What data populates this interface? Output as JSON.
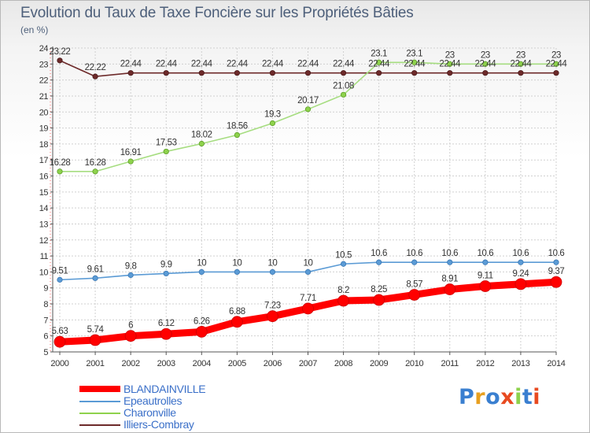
{
  "title": "Evolution du Taux de Taxe Foncière sur les Propriétés Bâties",
  "unit": "(en %)",
  "logo": "Proxiti",
  "colors": {
    "BLANDAINVILLE": "#ff0000",
    "Epeautrolles": "#5b9bd5",
    "Charonville": "#8ed24c",
    "Illiers-Combray": "#6d2a2a",
    "title": "#4d5f7a"
  },
  "chart_data": {
    "type": "line",
    "title": "Evolution du Taux de Taxe Foncière sur les Propriétés Bâties",
    "ylabel": "(en %)",
    "xlabel": "",
    "x": [
      "2000",
      "2001",
      "2002",
      "2003",
      "2004",
      "2005",
      "2006",
      "2007",
      "2008",
      "2009",
      "2010",
      "2011",
      "2012",
      "2013",
      "2014"
    ],
    "ylim": [
      5,
      24
    ],
    "yticks": [
      5,
      6,
      7,
      8,
      9,
      10,
      11,
      12,
      13,
      14,
      15,
      16,
      17,
      18,
      19,
      20,
      21,
      22,
      23,
      24
    ],
    "legend_position": "bottom-left",
    "series": [
      {
        "name": "BLANDAINVILLE",
        "values": [
          5.63,
          5.74,
          6,
          6.12,
          6.26,
          6.88,
          7.23,
          7.71,
          8.2,
          8.25,
          8.57,
          8.91,
          9.11,
          9.24,
          9.37
        ],
        "labels": [
          "5.63",
          "5.74",
          "6",
          "6.12",
          "6.26",
          "6.88",
          "7.23",
          "7.71",
          "8.2",
          "8.25",
          "8.57",
          "8.91",
          "9.11",
          "9.24",
          "9.37"
        ]
      },
      {
        "name": "Epeautrolles",
        "values": [
          9.51,
          9.61,
          9.8,
          9.9,
          10,
          10,
          10,
          10,
          10.5,
          10.6,
          10.6,
          10.6,
          10.6,
          10.6,
          10.6
        ],
        "labels": [
          "9.51",
          "9.61",
          "9.8",
          "9.9",
          "10",
          "10",
          "10",
          "10",
          "10.5",
          "10.6",
          "10.6",
          "10.6",
          "10.6",
          "10.6",
          "10.6"
        ]
      },
      {
        "name": "Charonville",
        "values": [
          16.28,
          16.28,
          16.91,
          17.53,
          18.02,
          18.56,
          19.3,
          20.17,
          21.08,
          23.1,
          23.1,
          23,
          23,
          23,
          23
        ],
        "labels": [
          "16.28",
          "16.28",
          "16.91",
          "17.53",
          "18.02",
          "18.56",
          "19.3",
          "20.17",
          "21.08",
          "23.1",
          "23.1",
          "23",
          "23",
          "23",
          "23"
        ]
      },
      {
        "name": "Illiers-Combray",
        "values": [
          23.22,
          22.22,
          22.44,
          22.44,
          22.44,
          22.44,
          22.44,
          22.44,
          22.44,
          22.44,
          22.44,
          22.44,
          22.44,
          22.44,
          22.44
        ],
        "labels": [
          "23.22",
          "22.22",
          "22.44",
          "22.44",
          "22.44",
          "22.44",
          "22.44",
          "22.44",
          "22.44",
          "22.44",
          "22.44",
          "22.44",
          "22.44",
          "22.44",
          "22.44"
        ]
      }
    ]
  }
}
